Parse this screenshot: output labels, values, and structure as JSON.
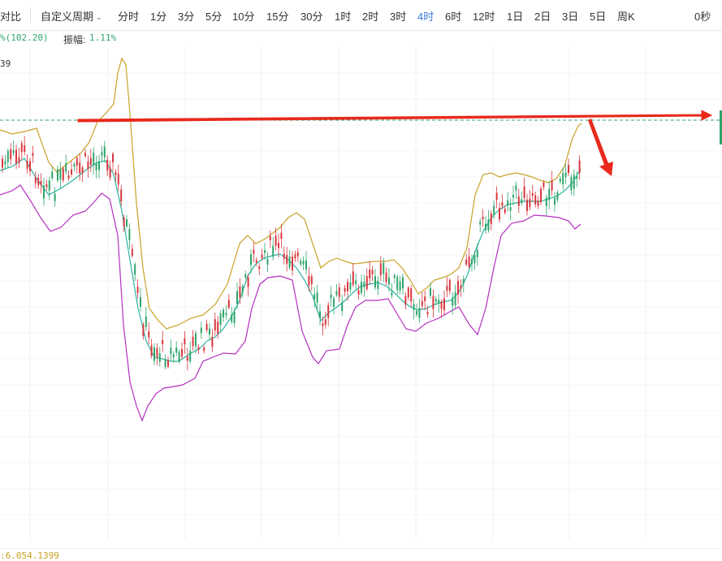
{
  "toolbar": {
    "compare_label": "对比",
    "custom_period_label": "自定义周期",
    "periods": [
      "分时",
      "1分",
      "3分",
      "5分",
      "10分",
      "15分",
      "30分",
      "1时",
      "2时",
      "3时",
      "4时",
      "6时",
      "12时",
      "1日",
      "2日",
      "3日",
      "5日",
      "周K"
    ],
    "active_period": "4时",
    "countdown": "0秒"
  },
  "info": {
    "change_text": "%(102.20)",
    "amplitude_label": "振幅:",
    "amplitude_value": "1.11%",
    "indicator_fragment": "39"
  },
  "footer": {
    "value_text": ":6.054.1399"
  },
  "colors": {
    "upper_band": "#c9a227",
    "middle_band": "#2ab3a0",
    "lower_band": "#b62fc2",
    "candle_up": "#2fa56b",
    "candle_down": "#d9363e",
    "annotation_arrow": "#e8291c",
    "dashed_level": "#2fa56b",
    "active_tab": "#3a7bd5"
  },
  "chart_data": {
    "type": "line",
    "indicator": "bollinger-bands",
    "annotation": "horizontal arrow at resistance level with downward arrow"
  }
}
